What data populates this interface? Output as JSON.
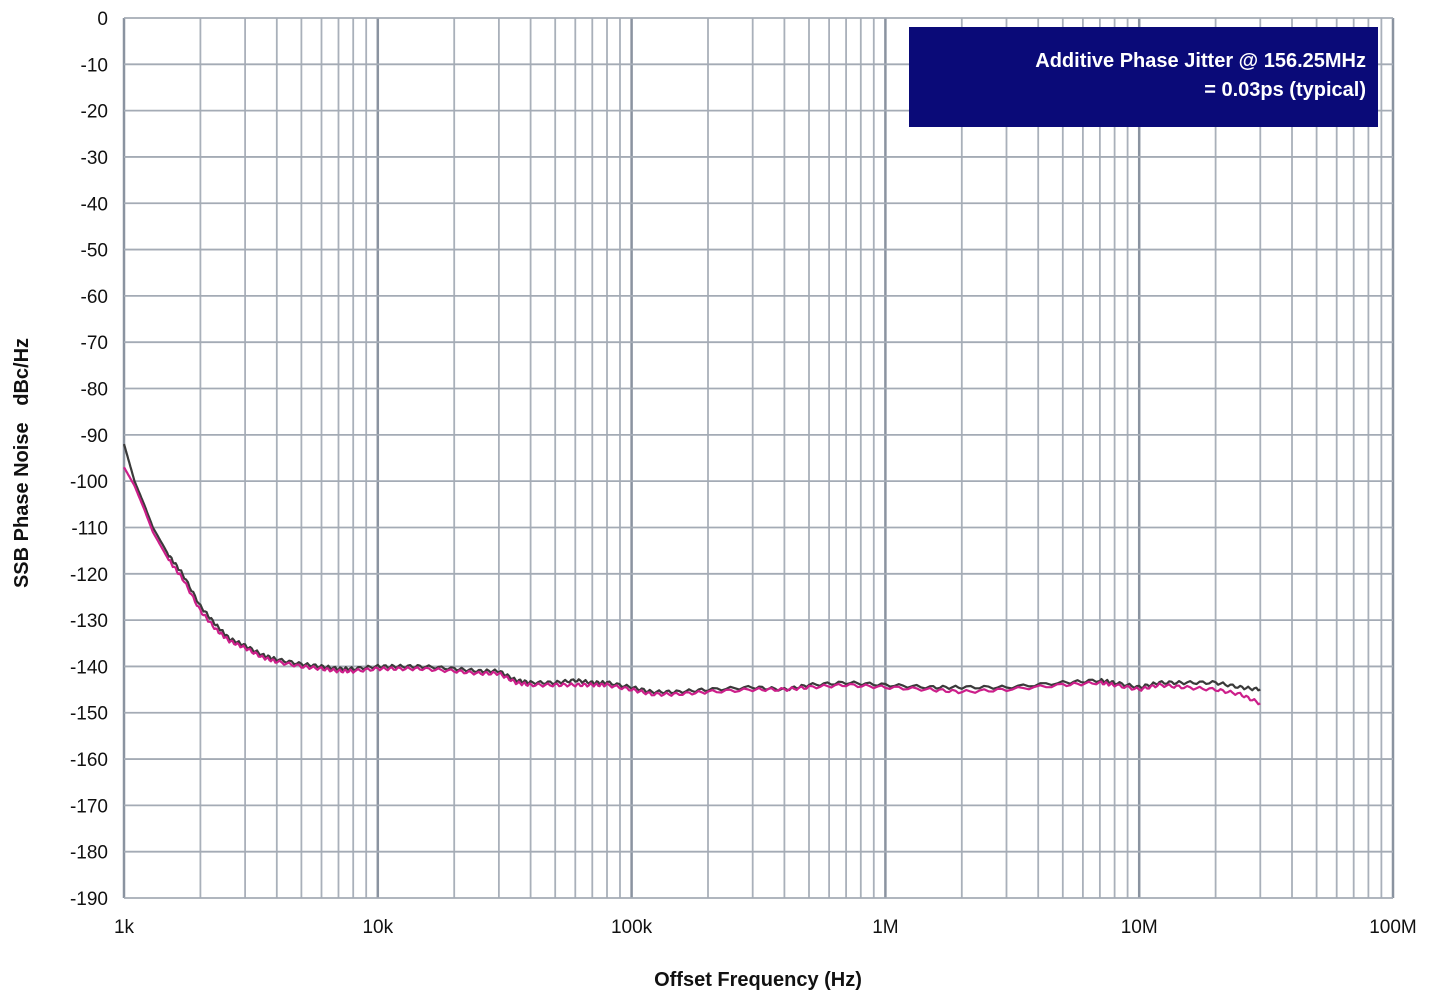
{
  "chart_data": {
    "type": "line",
    "title": "",
    "xlabel": "Offset Frequency (Hz)",
    "ylabel": "SSB Phase Noise   dBc/Hz",
    "x_scale": "log",
    "xlim": [
      1000,
      100000000
    ],
    "ylim": [
      -190,
      0
    ],
    "x_ticks": [
      {
        "value": 1000,
        "label": "1k"
      },
      {
        "value": 10000,
        "label": "10k"
      },
      {
        "value": 100000,
        "label": "100k"
      },
      {
        "value": 1000000,
        "label": "1M"
      },
      {
        "value": 10000000,
        "label": "10M"
      },
      {
        "value": 100000000,
        "label": "100M"
      }
    ],
    "y_ticks": [
      {
        "value": 0,
        "label": "0"
      },
      {
        "value": -10,
        "label": "-10"
      },
      {
        "value": -20,
        "label": "-20"
      },
      {
        "value": -30,
        "label": "-30"
      },
      {
        "value": -40,
        "label": "-40"
      },
      {
        "value": -50,
        "label": "-50"
      },
      {
        "value": -60,
        "label": "-60"
      },
      {
        "value": -70,
        "label": "-70"
      },
      {
        "value": -80,
        "label": "-80"
      },
      {
        "value": -90,
        "label": "-90"
      },
      {
        "value": -100,
        "label": "-100"
      },
      {
        "value": -110,
        "label": "-110"
      },
      {
        "value": -120,
        "label": "-120"
      },
      {
        "value": -130,
        "label": "-130"
      },
      {
        "value": -140,
        "label": "-140"
      },
      {
        "value": -150,
        "label": "-150"
      },
      {
        "value": -160,
        "label": "-160"
      },
      {
        "value": -170,
        "label": "-170"
      },
      {
        "value": -180,
        "label": "-180"
      },
      {
        "value": -190,
        "label": "-190"
      }
    ],
    "grid": true,
    "legend": "none",
    "annotation": {
      "lines": [
        "Additive Phase Jitter @ 156.25MHz",
        "= 0.03ps (typical)"
      ],
      "placement": "top-right",
      "background": "#0a0a78",
      "text_color": "#ffffff"
    },
    "series": [
      {
        "color": "#3a3a3a",
        "x": [
          1000,
          1100,
          1200,
          1300,
          1500,
          1700,
          2000,
          2300,
          2600,
          3000,
          3500,
          4000,
          5000,
          6000,
          7000,
          8000,
          10000,
          12000,
          15000,
          20000,
          25000,
          30000,
          35000,
          40000,
          50000,
          60000,
          70000,
          80000,
          100000,
          120000,
          150000,
          200000,
          300000,
          400000,
          500000,
          700000,
          1000000,
          1500000,
          2000000,
          3000000,
          5000000,
          7000000,
          8000000,
          10000000,
          12000000,
          15000000,
          20000000,
          25000000,
          30000000
        ],
        "y": [
          -92,
          -100,
          -105,
          -110,
          -116,
          -120,
          -127,
          -131,
          -134,
          -135.5,
          -137.5,
          -138.5,
          -139.5,
          -140,
          -140.5,
          -140.5,
          -140,
          -140,
          -140,
          -140.5,
          -141,
          -141,
          -143,
          -143.5,
          -143.5,
          -143,
          -143.5,
          -143.5,
          -144.5,
          -145.5,
          -145.5,
          -145,
          -144.5,
          -145,
          -144,
          -143.5,
          -144,
          -144.5,
          -144.5,
          -144.5,
          -143.5,
          -143,
          -143.5,
          -144.5,
          -143.5,
          -143.5,
          -143.5,
          -144.5,
          -145
        ]
      },
      {
        "color": "#cc1f8a",
        "x": [
          1000,
          1100,
          1200,
          1300,
          1500,
          1700,
          2000,
          2300,
          2600,
          3000,
          3500,
          4000,
          5000,
          6000,
          7000,
          8000,
          10000,
          12000,
          15000,
          20000,
          25000,
          30000,
          35000,
          40000,
          50000,
          60000,
          70000,
          80000,
          100000,
          120000,
          150000,
          200000,
          300000,
          400000,
          500000,
          700000,
          1000000,
          1500000,
          2000000,
          3000000,
          5000000,
          7000000,
          8000000,
          10000000,
          12000000,
          15000000,
          20000000,
          25000000,
          30000000
        ],
        "y": [
          -97,
          -101,
          -106,
          -111,
          -117,
          -121,
          -128,
          -132,
          -134.5,
          -136,
          -138,
          -139,
          -140,
          -140.5,
          -141,
          -141,
          -140.5,
          -140.5,
          -140.5,
          -141,
          -141.5,
          -141.5,
          -143.5,
          -144,
          -144,
          -144,
          -144,
          -144,
          -145,
          -146,
          -146,
          -145.5,
          -145,
          -145,
          -144.5,
          -144,
          -144.5,
          -145,
          -145.5,
          -145,
          -144,
          -143.5,
          -144,
          -145,
          -144,
          -144.5,
          -145,
          -146,
          -148
        ]
      }
    ]
  }
}
